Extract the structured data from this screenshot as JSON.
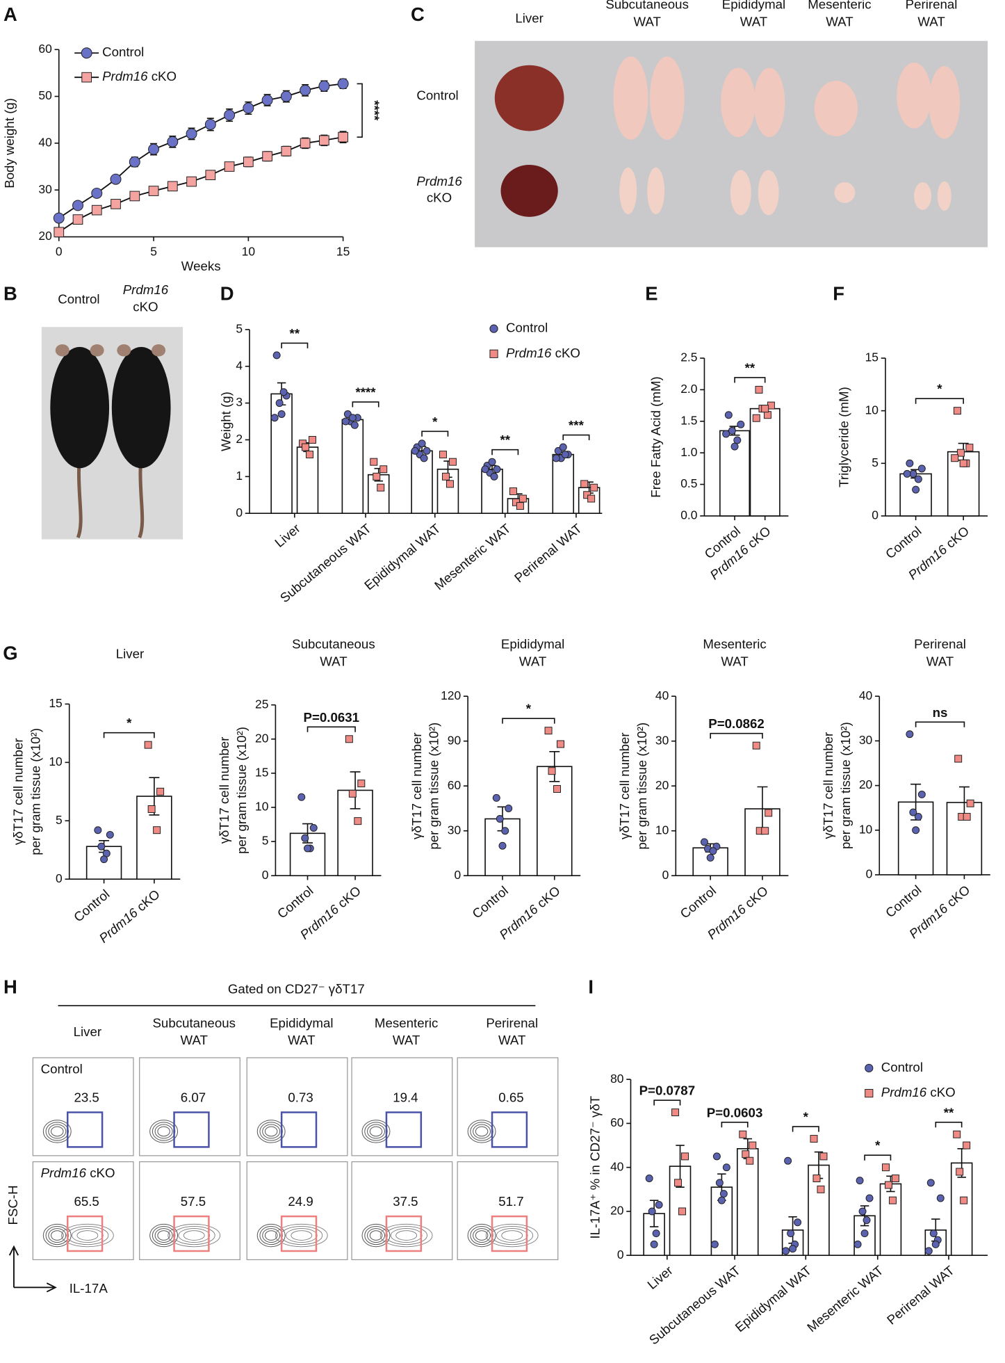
{
  "panel_labels": [
    "A",
    "B",
    "C",
    "D",
    "E",
    "F",
    "G",
    "H",
    "I"
  ],
  "photo_B": {
    "labels": [
      [
        "Control"
      ],
      [
        "Prdm16",
        "cKO"
      ]
    ]
  },
  "photo_C": {
    "columns": [
      [
        "Liver"
      ],
      [
        "Subcutaneous",
        "WAT"
      ],
      [
        "Epididymal",
        "WAT"
      ],
      [
        "Mesenteric",
        "WAT"
      ],
      [
        "Perirenal",
        "WAT"
      ]
    ],
    "rows": [
      [
        "Control"
      ],
      [
        "Prdm16",
        "cKO"
      ]
    ]
  },
  "flow_H": {
    "header": "Gated on CD27⁻ γδT17",
    "columns": [
      [
        "Liver"
      ],
      [
        "Subcutaneous",
        "WAT"
      ],
      [
        "Epididymal",
        "WAT"
      ],
      [
        "Mesenteric",
        "WAT"
      ],
      [
        "Perirenal",
        "WAT"
      ]
    ],
    "rows": [
      "Control",
      "Prdm16 cKO"
    ],
    "values": [
      [
        23.5,
        6.07,
        0.73,
        19.4,
        0.65
      ],
      [
        65.5,
        57.5,
        24.9,
        37.5,
        51.7
      ]
    ],
    "axes": [
      "FSC-H",
      "IL-17A"
    ]
  },
  "chart_data": [
    {
      "type": "line",
      "xlabel": "Weeks",
      "ylabel": "Body weight (g)",
      "x": [
        0,
        1,
        2,
        3,
        4,
        5,
        6,
        7,
        8,
        9,
        10,
        11,
        12,
        13,
        14,
        15
      ],
      "xlim": [
        0,
        15
      ],
      "xticks": [
        0,
        5,
        10,
        15
      ],
      "ylim": [
        20,
        60
      ],
      "yticks": [
        20,
        30,
        40,
        50,
        60
      ],
      "legend": "upper left",
      "annotation": "****",
      "series": [
        {
          "name": "Control",
          "color": "#6a72c8",
          "marker": "circle",
          "values": [
            24,
            26.7,
            29.3,
            32.3,
            36,
            38.7,
            40.3,
            42,
            44,
            46,
            47.5,
            49.2,
            50,
            51.3,
            52.2,
            52.7
          ],
          "errors": [
            0.6,
            0.6,
            0.7,
            0.8,
            1,
            1.2,
            1.2,
            1.2,
            1.3,
            1.3,
            1.3,
            1.2,
            1.2,
            1.2,
            1.1,
            1
          ]
        },
        {
          "name": "Prdm16 cKO",
          "color": "#f4a3a0",
          "marker": "square",
          "values": [
            21,
            23.7,
            25.7,
            27,
            28.7,
            29.8,
            30.8,
            31.8,
            33.2,
            35,
            36,
            37.2,
            38.3,
            40,
            40.6,
            41.3
          ],
          "errors": [
            0.5,
            0.5,
            0.6,
            0.6,
            0.7,
            0.7,
            0.8,
            0.8,
            0.9,
            0.9,
            1,
            1,
            1,
            1.1,
            1.1,
            1.2
          ]
        }
      ]
    },
    {
      "type": "grouped_bar",
      "ylabel": "Weight (g)",
      "categories": [
        "Liver",
        "Subcutaneous WAT",
        "Epididymal WAT",
        "Mesenteric WAT",
        "Perirenal WAT"
      ],
      "ylim": [
        0,
        5
      ],
      "yticks": [
        0,
        1,
        2,
        3,
        4,
        5
      ],
      "legend": "upper right",
      "significance": [
        "**",
        "****",
        "*",
        "**",
        "***"
      ],
      "series": [
        {
          "name": "Control",
          "color": "#5b62b0",
          "marker": "circle",
          "values": [
            3.25,
            2.55,
            1.7,
            1.2,
            1.6
          ],
          "errors": [
            0.3,
            0.1,
            0.12,
            0.1,
            0.07
          ],
          "points": [
            [
              4.3,
              3.2,
              3.0,
              3.3,
              2.7,
              2.6
            ],
            [
              2.7,
              2.6,
              2.5,
              2.4,
              2.6,
              2.5
            ],
            [
              1.8,
              1.7,
              1.6,
              1.5,
              1.9,
              1.7
            ],
            [
              1.3,
              1.2,
              1.1,
              1.0,
              1.4,
              1.2
            ],
            [
              1.7,
              1.6,
              1.5,
              1.6,
              1.8,
              1.5
            ]
          ]
        },
        {
          "name": "Prdm16 cKO",
          "color": "#f08a84",
          "marker": "square",
          "values": [
            1.8,
            1.05,
            1.2,
            0.4,
            0.7
          ],
          "errors": [
            0.12,
            0.17,
            0.22,
            0.13,
            0.15
          ],
          "points": [
            [
              1.9,
              2.0,
              1.8,
              1.6
            ],
            [
              1.4,
              1.2,
              1.0,
              0.7
            ],
            [
              1.6,
              1.4,
              1.0,
              0.8
            ],
            [
              0.6,
              0.4,
              0.3,
              0.2
            ],
            [
              0.8,
              0.7,
              0.5,
              0.4
            ]
          ]
        }
      ]
    },
    {
      "type": "bar",
      "ylabel": "Free Fatty Acid (mM)",
      "categories": [
        "Control",
        "Prdm16 cKO"
      ],
      "colors": [
        "#5b62b0",
        "#f08a84"
      ],
      "markers": [
        "circle",
        "square"
      ],
      "values": [
        1.35,
        1.7
      ],
      "errors": [
        0.07,
        0.05
      ],
      "points": [
        [
          1.6,
          1.45,
          1.35,
          1.2,
          1.1,
          1.3
        ],
        [
          2.0,
          1.75,
          1.7,
          1.6,
          1.7,
          1.55
        ]
      ],
      "ylim": [
        0,
        2.5
      ],
      "yticks": [
        {
          "value": 0,
          "label": "0.0"
        },
        0.5,
        {
          "value": 1,
          "label": "1.0"
        },
        1.5,
        {
          "value": 2,
          "label": "2.0"
        },
        2.5
      ],
      "significance": "**"
    },
    {
      "type": "bar",
      "ylabel": "Triglyceride (mM)",
      "categories": [
        "Control",
        "Prdm16 cKO"
      ],
      "colors": [
        "#5b62b0",
        "#f08a84"
      ],
      "markers": [
        "circle",
        "square"
      ],
      "values": [
        4.0,
        6.1
      ],
      "errors": [
        0.4,
        0.8
      ],
      "points": [
        [
          5,
          4.5,
          4,
          3.5,
          2.5,
          4
        ],
        [
          10,
          6.5,
          6,
          5,
          5,
          5.5
        ]
      ],
      "ylim": [
        0,
        15
      ],
      "yticks": [
        0,
        5,
        10,
        15
      ],
      "significance": "*"
    },
    {
      "type": "bar",
      "title": [
        "Liver"
      ],
      "ylabel": [
        "γδT17 cell number",
        "per gram tissue (x10²)"
      ],
      "categories": [
        "Control",
        "Prdm16 cKO"
      ],
      "colors": [
        "#5b62b0",
        "#f08a84"
      ],
      "markers": [
        "circle",
        "square"
      ],
      "values": [
        2.8,
        7.1
      ],
      "errors": [
        0.5,
        1.6
      ],
      "points": [
        [
          4.2,
          3.8,
          2.8,
          2.2,
          1.7
        ],
        [
          11.5,
          7.5,
          6.0,
          4.2
        ]
      ],
      "ylim": [
        0,
        15
      ],
      "yticks": [
        0,
        5,
        10,
        15
      ],
      "significance": "*"
    },
    {
      "type": "bar",
      "title": [
        "Subcutaneous",
        "WAT"
      ],
      "ylabel": [
        "γδT17 cell number",
        "per gram tissue (x10²)"
      ],
      "categories": [
        "Control",
        "Prdm16 cKO"
      ],
      "colors": [
        "#5b62b0",
        "#f08a84"
      ],
      "markers": [
        "circle",
        "square"
      ],
      "values": [
        6.2,
        12.5
      ],
      "errors": [
        1.4,
        2.7
      ],
      "points": [
        [
          11.5,
          7,
          5.5,
          4,
          4
        ],
        [
          20,
          13.5,
          12,
          8
        ]
      ],
      "ylim": [
        0,
        25
      ],
      "yticks": [
        0,
        5,
        10,
        15,
        20,
        25
      ],
      "significance": "P=0.0631"
    },
    {
      "type": "bar",
      "title": [
        "Epididymal",
        "WAT"
      ],
      "ylabel": [
        "γδT17 cell number",
        "per gram tissue (x10²)"
      ],
      "categories": [
        "Control",
        "Prdm16 cKO"
      ],
      "colors": [
        "#5b62b0",
        "#f08a84"
      ],
      "markers": [
        "circle",
        "square"
      ],
      "values": [
        38,
        73
      ],
      "errors": [
        8,
        10
      ],
      "points": [
        [
          52,
          45,
          38,
          30,
          20
        ],
        [
          97,
          88,
          70,
          58
        ]
      ],
      "ylim": [
        0,
        120
      ],
      "yticks": [
        0,
        30,
        60,
        90,
        120
      ],
      "significance": "*"
    },
    {
      "type": "bar",
      "title": [
        "Mesenteric",
        "WAT"
      ],
      "ylabel": [
        "γδT17 cell number",
        "per gram tissue (x10²)"
      ],
      "categories": [
        "Control",
        "Prdm16 cKO"
      ],
      "colors": [
        "#5b62b0",
        "#f08a84"
      ],
      "markers": [
        "circle",
        "square"
      ],
      "values": [
        6.2,
        14.9
      ],
      "errors": [
        0.9,
        4.9
      ],
      "points": [
        [
          7.5,
          6.5,
          6,
          5.5,
          4
        ],
        [
          29,
          14,
          10,
          10
        ]
      ],
      "ylim": [
        0,
        40
      ],
      "yticks": [
        0,
        10,
        20,
        30,
        40
      ],
      "significance": "P=0.0862"
    },
    {
      "type": "bar",
      "title": [
        "Perirenal",
        "WAT"
      ],
      "ylabel": [
        "γδT17 cell number",
        "per gram tissue (x10²)"
      ],
      "categories": [
        "Control",
        "Prdm16 cKO"
      ],
      "colors": [
        "#5b62b0",
        "#f08a84"
      ],
      "markers": [
        "circle",
        "square"
      ],
      "values": [
        16.3,
        16.2
      ],
      "errors": [
        4,
        3.5
      ],
      "points": [
        [
          31.5,
          18,
          14,
          13,
          10
        ],
        [
          26,
          16,
          13,
          13
        ]
      ],
      "ylim": [
        0,
        40
      ],
      "yticks": [
        0,
        10,
        20,
        30,
        40
      ],
      "significance": "ns"
    },
    {
      "type": "grouped_bar",
      "ylabel": "IL-17A⁺ % in CD27⁻ γδT",
      "categories": [
        "Liver",
        "Subcutaneous WAT",
        "Epididymal WAT",
        "Mesenteric WAT",
        "Perirenal WAT"
      ],
      "ylim": [
        0,
        80
      ],
      "yticks": [
        0,
        20,
        40,
        60,
        80
      ],
      "legend": "upper right",
      "significance": [
        "P=0.0787",
        "P=0.0603",
        "*",
        "*",
        "**"
      ],
      "series": [
        {
          "name": "Control",
          "color": "#5b62b0",
          "marker": "circle",
          "values": [
            19,
            31,
            11.5,
            18,
            11.5
          ],
          "errors": [
            6,
            6,
            6,
            4.5,
            5
          ],
          "points": [
            [
              35,
              23,
              20,
              10,
              5
            ],
            [
              45,
              40,
              33,
              28,
              25,
              5
            ],
            [
              43,
              15,
              10,
              5,
              3,
              2
            ],
            [
              34,
              26,
              20,
              16,
              10,
              5
            ],
            [
              33,
              26,
              10,
              7,
              5,
              2
            ]
          ]
        },
        {
          "name": "Prdm16 cKO",
          "color": "#f08a84",
          "marker": "square",
          "values": [
            40.5,
            48.5,
            41,
            32.5,
            42
          ],
          "errors": [
            9.5,
            4.5,
            6,
            3.5,
            6.5
          ],
          "points": [
            [
              65,
              45,
              33,
              20
            ],
            [
              55,
              50,
              46,
              43
            ],
            [
              53,
              45,
              35,
              30
            ],
            [
              40,
              35,
              32,
              25
            ],
            [
              55,
              50,
              38,
              25
            ]
          ]
        }
      ]
    }
  ]
}
